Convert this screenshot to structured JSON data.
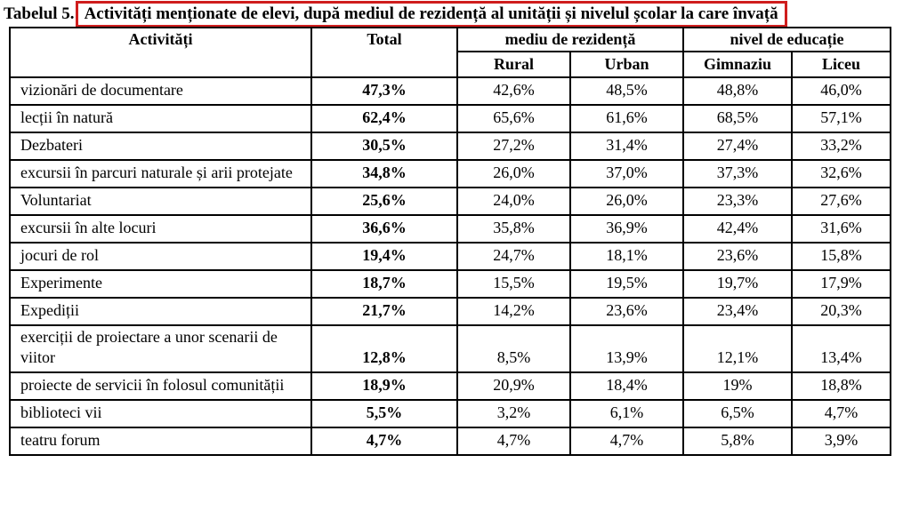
{
  "heading": {
    "label": "Tabelul 5.",
    "title": "Activități menționate de elevi, după mediul de rezidență al unității și nivelul școlar la care învață"
  },
  "table": {
    "headers": {
      "activities": "Activități",
      "total": "Total",
      "residence_group": "mediu de rezidență",
      "education_group": "nivel de educație",
      "rural": "Rural",
      "urban": "Urban",
      "gimnaziu": "Gimnaziu",
      "liceu": "Liceu"
    },
    "rows": [
      {
        "activity": "vizionări de documentare",
        "total": "47,3%",
        "rural": "42,6%",
        "urban": "48,5%",
        "gimnaziu": "48,8%",
        "liceu": "46,0%"
      },
      {
        "activity": "lecții în natură",
        "total": "62,4%",
        "rural": "65,6%",
        "urban": "61,6%",
        "gimnaziu": "68,5%",
        "liceu": "57,1%"
      },
      {
        "activity": "Dezbateri",
        "total": "30,5%",
        "rural": "27,2%",
        "urban": "31,4%",
        "gimnaziu": "27,4%",
        "liceu": "33,2%"
      },
      {
        "activity": "excursii în parcuri naturale și arii protejate",
        "total": "34,8%",
        "rural": "26,0%",
        "urban": "37,0%",
        "gimnaziu": "37,3%",
        "liceu": "32,6%"
      },
      {
        "activity": "Voluntariat",
        "total": "25,6%",
        "rural": "24,0%",
        "urban": "26,0%",
        "gimnaziu": "23,3%",
        "liceu": "27,6%"
      },
      {
        "activity": "excursii în alte locuri",
        "total": "36,6%",
        "rural": "35,8%",
        "urban": "36,9%",
        "gimnaziu": "42,4%",
        "liceu": "31,6%"
      },
      {
        "activity": "jocuri de rol",
        "total": "19,4%",
        "rural": "24,7%",
        "urban": "18,1%",
        "gimnaziu": "23,6%",
        "liceu": "15,8%"
      },
      {
        "activity": "Experimente",
        "total": "18,7%",
        "rural": "15,5%",
        "urban": "19,5%",
        "gimnaziu": "19,7%",
        "liceu": "17,9%"
      },
      {
        "activity": "Expediții",
        "total": "21,7%",
        "rural": "14,2%",
        "urban": "23,6%",
        "gimnaziu": "23,4%",
        "liceu": "20,3%"
      },
      {
        "activity": "exerciții de proiectare a unor scenarii de viitor",
        "total": "12,8%",
        "rural": "8,5%",
        "urban": "13,9%",
        "gimnaziu": "12,1%",
        "liceu": "13,4%"
      },
      {
        "activity": "proiecte de servicii în folosul comunității",
        "total": "18,9%",
        "rural": "20,9%",
        "urban": "18,4%",
        "gimnaziu": "19%",
        "liceu": "18,8%"
      },
      {
        "activity": "biblioteci vii",
        "total": "5,5%",
        "rural": "3,2%",
        "urban": "6,1%",
        "gimnaziu": "6,5%",
        "liceu": "4,7%"
      },
      {
        "activity": "teatru forum",
        "total": "4,7%",
        "rural": "4,7%",
        "urban": "4,7%",
        "gimnaziu": "5,8%",
        "liceu": "3,9%"
      }
    ]
  },
  "colors": {
    "highlight_border": "#cf1d1d",
    "table_border": "#000000",
    "text": "#000000",
    "background": "#ffffff"
  }
}
